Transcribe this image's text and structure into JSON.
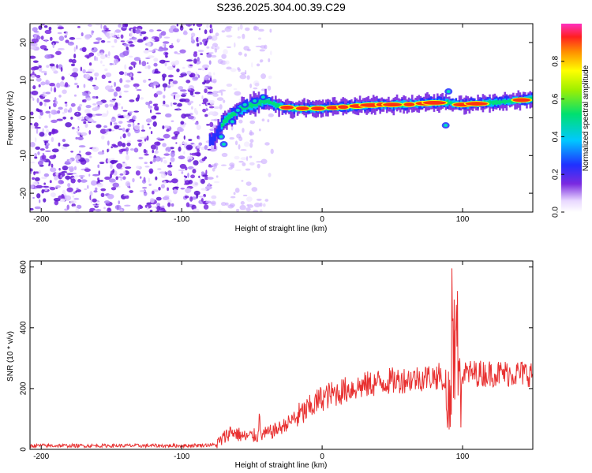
{
  "title": "S236.2025.304.00.39.C29",
  "colors": {
    "snr_line": "#e83030",
    "noise_purple": "#7a2ae0",
    "frame": "#000000"
  },
  "chart_data": [
    {
      "type": "heatmap",
      "name": "spectrogram",
      "xlabel": "Height of straight line (km)",
      "ylabel": "Frequency (Hz)",
      "xlim": [
        -208,
        150
      ],
      "ylim": [
        -25,
        25
      ],
      "xticks": [
        "-200",
        "-100",
        "0",
        "100"
      ],
      "xtick_values": [
        -200,
        -100,
        0,
        100
      ],
      "yticks": [
        "20",
        "10",
        "0",
        "-10",
        "-20"
      ],
      "ytick_values": [
        20,
        10,
        0,
        -10,
        -20
      ],
      "colorbar": {
        "label": "Normalized spectral amplitude",
        "range": [
          0,
          1
        ],
        "ticks": [
          "0.0",
          "0.2",
          "0.4",
          "0.6",
          "0.8"
        ],
        "tick_values": [
          0.0,
          0.2,
          0.4,
          0.6,
          0.8
        ]
      },
      "ridge": {
        "description_points_x": [
          -78,
          -70,
          -60,
          -50,
          -40,
          -30,
          -20,
          0,
          20,
          40,
          60,
          80,
          90,
          100,
          120,
          150
        ],
        "frequency_hz": [
          -6,
          -1,
          2,
          3.5,
          4.5,
          3,
          2.5,
          2.5,
          3,
          3.5,
          3.5,
          4,
          4,
          3.5,
          4,
          5
        ]
      }
    },
    {
      "type": "line",
      "name": "snr",
      "xlabel": "Height of straight line (km)",
      "ylabel": "SNR (10 * v/v)",
      "xlim": [
        -208,
        150
      ],
      "ylim": [
        0,
        620
      ],
      "xticks": [
        "-200",
        "-100",
        "0",
        "100"
      ],
      "xtick_values": [
        -200,
        -100,
        0,
        100
      ],
      "yticks": [
        "600",
        "400",
        "200",
        "0"
      ],
      "ytick_values": [
        600,
        400,
        200,
        0
      ],
      "trend_x": [
        -208,
        -150,
        -100,
        -75,
        -65,
        -55,
        -40,
        -30,
        -20,
        -10,
        0,
        20,
        40,
        60,
        80,
        90,
        100,
        120,
        150
      ],
      "trend_y": [
        12,
        12,
        12,
        15,
        60,
        40,
        50,
        70,
        100,
        130,
        170,
        200,
        220,
        230,
        240,
        240,
        250,
        250,
        250
      ]
    }
  ]
}
